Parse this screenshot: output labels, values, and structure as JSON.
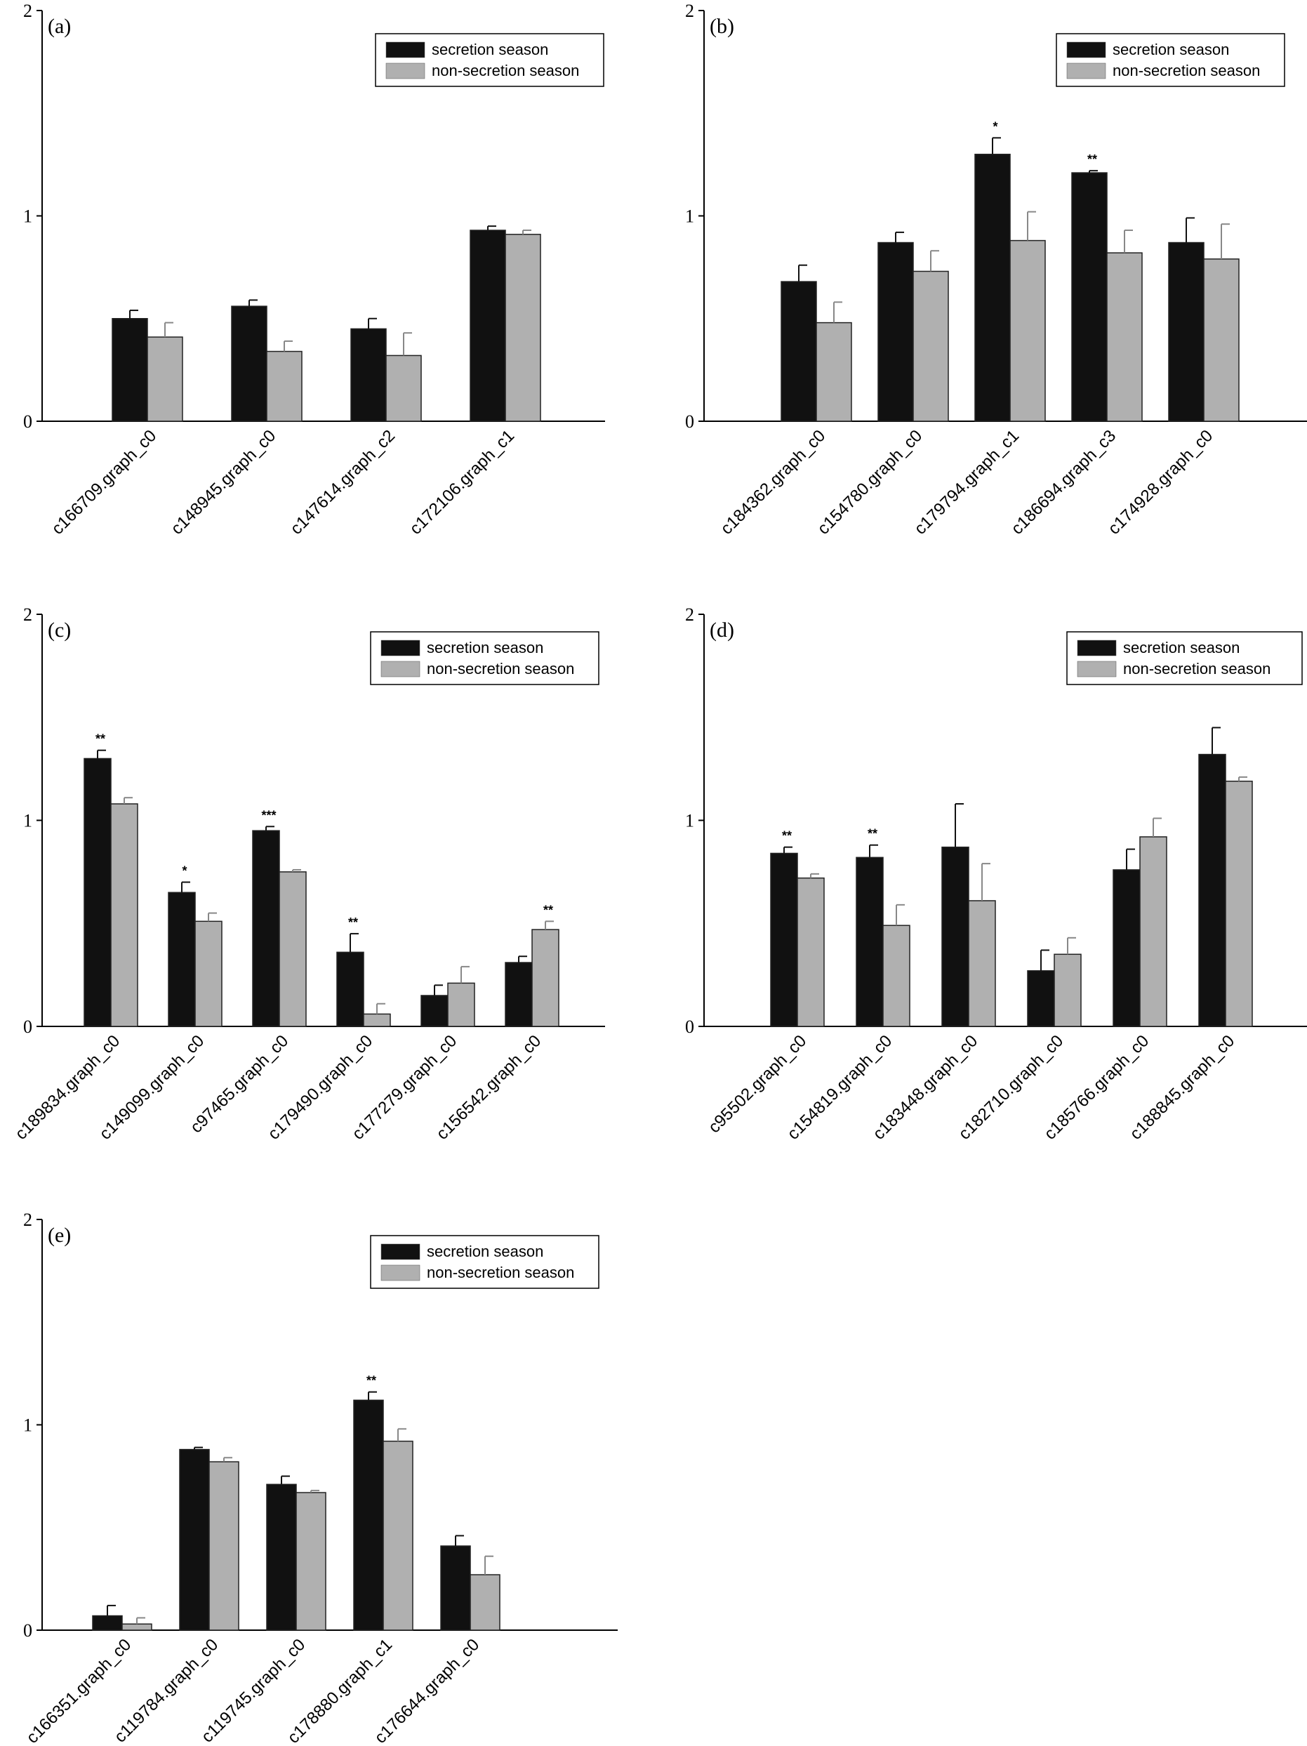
{
  "figure": {
    "legend": {
      "series1": "secretion season",
      "series2": "non-secretion season"
    },
    "colors": {
      "series1": "#111111",
      "series2": "#b0b0b0",
      "axis": "#000000",
      "errorbar1": "#111111",
      "errorbar2": "#888888"
    }
  },
  "chart_data": [
    {
      "type": "bar",
      "panel": "(a)",
      "ylim": [
        0,
        2
      ],
      "yticks": [
        "0",
        "1",
        "2"
      ],
      "legend_position": "top-right",
      "categories": [
        "c166709.graph_c0",
        "c148945.graph_c0",
        "c147614.graph_c2",
        "c172106.graph_c1"
      ],
      "series": [
        {
          "name": "secretion season",
          "values": [
            0.5,
            0.56,
            0.45,
            0.93
          ],
          "errors": [
            0.04,
            0.03,
            0.05,
            0.02
          ]
        },
        {
          "name": "non-secretion season",
          "values": [
            0.41,
            0.34,
            0.32,
            0.91
          ],
          "errors": [
            0.07,
            0.05,
            0.11,
            0.02
          ]
        }
      ],
      "significance": [
        {
          "category": 0,
          "series": 0,
          "label": ""
        }
      ]
    },
    {
      "type": "bar",
      "panel": "(b)",
      "ylim": [
        0,
        2
      ],
      "yticks": [
        "0",
        "1",
        "2"
      ],
      "legend_position": "top-right",
      "categories": [
        "c184362.graph_c0",
        "c154780.graph_c0",
        "c179794.graph_c1",
        "c186694.graph_c3",
        "c174928.graph_c0"
      ],
      "series": [
        {
          "name": "secretion season",
          "values": [
            0.68,
            0.87,
            1.3,
            1.21,
            0.87
          ],
          "errors": [
            0.08,
            0.05,
            0.08,
            0.01,
            0.12
          ]
        },
        {
          "name": "non-secretion season",
          "values": [
            0.48,
            0.73,
            0.88,
            0.82,
            0.79
          ],
          "errors": [
            0.1,
            0.1,
            0.14,
            0.11,
            0.17
          ]
        }
      ],
      "significance": [
        {
          "category": 2,
          "series": 0,
          "label": "*"
        },
        {
          "category": 3,
          "series": 0,
          "label": "**"
        }
      ]
    },
    {
      "type": "bar",
      "panel": "(c)",
      "ylim": [
        0,
        2
      ],
      "yticks": [
        "0",
        "1",
        "2"
      ],
      "legend_position": "top-right",
      "categories": [
        "c189834.graph_c0",
        "c149099.graph_c0",
        "c97465.graph_c0",
        "c179490.graph_c0",
        "c177279.graph_c0",
        "c156542.graph_c0"
      ],
      "series": [
        {
          "name": "secretion season",
          "values": [
            1.3,
            0.65,
            0.95,
            0.36,
            0.15,
            0.31
          ],
          "errors": [
            0.04,
            0.05,
            0.02,
            0.09,
            0.05,
            0.03
          ]
        },
        {
          "name": "non-secretion season",
          "values": [
            1.08,
            0.51,
            0.75,
            0.06,
            0.21,
            0.47
          ],
          "errors": [
            0.03,
            0.04,
            0.01,
            0.05,
            0.08,
            0.04
          ]
        }
      ],
      "significance": [
        {
          "category": 0,
          "series": 0,
          "label": "**"
        },
        {
          "category": 1,
          "series": 0,
          "label": "*"
        },
        {
          "category": 2,
          "series": 0,
          "label": "***"
        },
        {
          "category": 3,
          "series": 0,
          "label": "**"
        },
        {
          "category": 5,
          "series": 1,
          "label": "**"
        }
      ]
    },
    {
      "type": "bar",
      "panel": "(d)",
      "ylim": [
        0,
        2
      ],
      "yticks": [
        "0",
        "1",
        "2"
      ],
      "legend_position": "top-right",
      "categories": [
        "c95502.graph_c0",
        "c154819.graph_c0",
        "c183448.graph_c0",
        "c182710.graph_c0",
        "c185766.graph_c0",
        "c188845.graph_c0"
      ],
      "series": [
        {
          "name": "secretion season",
          "values": [
            0.84,
            0.82,
            0.87,
            0.27,
            0.76,
            1.32
          ],
          "errors": [
            0.03,
            0.06,
            0.21,
            0.1,
            0.1,
            0.13
          ]
        },
        {
          "name": "non-secretion season",
          "values": [
            0.72,
            0.49,
            0.61,
            0.35,
            0.92,
            1.19
          ],
          "errors": [
            0.02,
            0.1,
            0.18,
            0.08,
            0.09,
            0.02
          ]
        }
      ],
      "significance": [
        {
          "category": 0,
          "series": 0,
          "label": "**"
        },
        {
          "category": 1,
          "series": 0,
          "label": "**"
        }
      ]
    },
    {
      "type": "bar",
      "panel": "(e)",
      "ylim": [
        0,
        2
      ],
      "yticks": [
        "0",
        "1",
        "2"
      ],
      "legend_position": "top-right",
      "categories": [
        "c166351.graph_c0",
        "c119784.graph_c0",
        "c119745.graph_c0",
        "c178880.graph_c1",
        "c176644.graph_c0"
      ],
      "series": [
        {
          "name": "secretion season",
          "values": [
            0.07,
            0.88,
            0.71,
            1.12,
            0.41
          ],
          "errors": [
            0.05,
            0.01,
            0.04,
            0.04,
            0.05
          ]
        },
        {
          "name": "non-secretion season",
          "values": [
            0.03,
            0.82,
            0.67,
            0.92,
            0.27
          ],
          "errors": [
            0.03,
            0.02,
            0.01,
            0.06,
            0.09
          ]
        }
      ],
      "significance": [
        {
          "category": 3,
          "series": 0,
          "label": "**"
        }
      ]
    }
  ]
}
